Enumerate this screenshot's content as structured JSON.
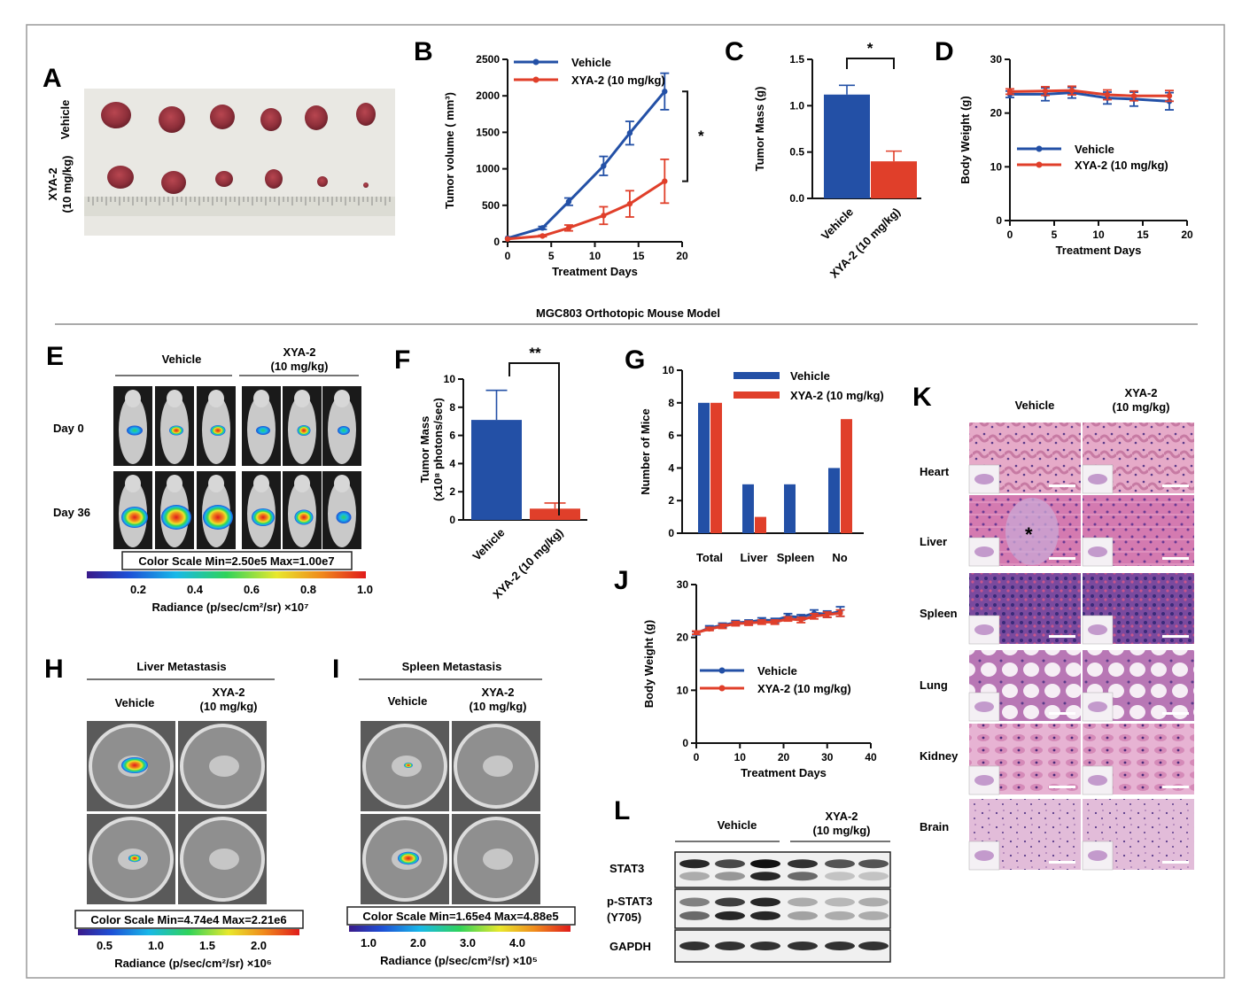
{
  "section_title": "MGC803 Orthotopic Mouse Model",
  "panel_labels": [
    "A",
    "B",
    "C",
    "D",
    "E",
    "F",
    "G",
    "H",
    "I",
    "J",
    "K",
    "L"
  ],
  "colors": {
    "vehicle": "#2350a6",
    "xya2": "#e03f2a"
  },
  "legend": {
    "vehicle": "Vehicle",
    "xya2": "XYA-2 (10 mg/kg)"
  },
  "panelA": {
    "row_labels": [
      "Vehicle",
      "XYA-2\n(10 mg/kg)"
    ]
  },
  "panelE": {
    "group_labels": [
      "Vehicle",
      "XYA-2\n(10 mg/kg)"
    ],
    "row_labels": [
      "Day 0",
      "Day 36"
    ],
    "color_scale": "Color Scale Min=2.50e5 Max=1.00e7",
    "ticks": [
      "0.2",
      "0.4",
      "0.6",
      "0.8",
      "1.0"
    ],
    "axis_label": "Radiance (p/sec/cm²/sr) ×10⁷"
  },
  "panelH": {
    "title": "Liver Metastasis",
    "group_labels": [
      "Vehicle",
      "XYA-2\n(10 mg/kg)"
    ],
    "color_scale": "Color Scale Min=4.74e4 Max=2.21e6",
    "ticks": [
      "0.5",
      "1.0",
      "1.5",
      "2.0"
    ],
    "axis_label": "Radiance (p/sec/cm²/sr) ×10⁶"
  },
  "panelI": {
    "title": "Spleen Metastasis",
    "group_labels": [
      "Vehicle",
      "XYA-2\n(10 mg/kg)"
    ],
    "color_scale": "Color Scale Min=1.65e4 Max=4.88e5",
    "ticks": [
      "1.0",
      "2.0",
      "3.0",
      "4.0"
    ],
    "axis_label": "Radiance (p/sec/cm²/sr) ×10⁵"
  },
  "panelK": {
    "col_labels": [
      "Vehicle",
      "XYA-2\n(10 mg/kg)"
    ],
    "row_labels": [
      "Heart",
      "Liver",
      "Spleen",
      "Lung",
      "Kidney",
      "Brain"
    ],
    "marker": "*"
  },
  "panelL": {
    "group_labels": [
      "Vehicle",
      "XYA-2\n(10 mg/kg)"
    ],
    "bands": [
      "STAT3",
      "p-STAT3\n(Y705)",
      "GAPDH"
    ]
  },
  "chart_data": [
    {
      "panel": "B",
      "type": "line",
      "xlabel": "Treatment Days",
      "ylabel": "Tumor volume ( mm³)",
      "x": [
        0,
        4,
        7,
        11,
        14,
        18
      ],
      "xlim": [
        0,
        20
      ],
      "xticks": [
        0,
        5,
        10,
        15,
        20
      ],
      "ylim": [
        0,
        2500
      ],
      "yticks": [
        0,
        500,
        1000,
        1500,
        2000,
        2500
      ],
      "series": [
        {
          "name": "Vehicle",
          "values": [
            50,
            190,
            550,
            1040,
            1490,
            2060
          ],
          "errors": [
            0,
            20,
            50,
            130,
            160,
            250
          ]
        },
        {
          "name": "XYA-2 (10 mg/kg)",
          "values": [
            40,
            80,
            190,
            360,
            520,
            830
          ],
          "errors": [
            0,
            10,
            40,
            120,
            180,
            300
          ]
        }
      ],
      "significance": "*"
    },
    {
      "panel": "C",
      "type": "bar",
      "ylabel": "Tumor Mass (g)",
      "categories": [
        "Vehicle",
        "XYA-2 (10 mg/kg)"
      ],
      "values": [
        1.12,
        0.4
      ],
      "errors": [
        0.1,
        0.11
      ],
      "ylim": [
        0,
        1.5
      ],
      "yticks": [
        0.0,
        0.5,
        1.0,
        1.5
      ],
      "significance": "*"
    },
    {
      "panel": "D",
      "type": "line",
      "xlabel": "Treatment Days",
      "ylabel": "Body Weight (g)",
      "x": [
        0,
        4,
        7,
        11,
        14,
        18
      ],
      "xlim": [
        0,
        20
      ],
      "xticks": [
        0,
        5,
        10,
        15,
        20
      ],
      "ylim": [
        0,
        30
      ],
      "yticks": [
        0,
        10,
        20,
        30
      ],
      "series": [
        {
          "name": "Vehicle",
          "values": [
            23.5,
            23.5,
            23.8,
            22.8,
            22.6,
            22.2
          ],
          "errors": [
            0.6,
            1.2,
            1.0,
            1.1,
            1.3,
            1.6
          ]
        },
        {
          "name": "XYA-2 (10 mg/kg)",
          "values": [
            24.0,
            24.1,
            24.2,
            23.4,
            23.2,
            23.2
          ],
          "errors": [
            0.5,
            0.8,
            0.8,
            0.9,
            0.9,
            1.0
          ]
        }
      ]
    },
    {
      "panel": "F",
      "type": "bar",
      "ylabel": "Tumor Mass\n(x10⁸ photons/sec)",
      "categories": [
        "Vehicle",
        "XYA-2 (10 mg/kg)"
      ],
      "values": [
        7.1,
        0.8
      ],
      "errors": [
        2.1,
        0.4
      ],
      "ylim": [
        0,
        10
      ],
      "yticks": [
        0,
        2,
        4,
        6,
        8,
        10
      ],
      "significance": "**"
    },
    {
      "panel": "G",
      "type": "bar",
      "ylabel": "Number of Mice",
      "categories": [
        "Total",
        "Liver",
        "Spleen",
        "No"
      ],
      "series": [
        {
          "name": "Vehicle",
          "values": [
            8,
            3,
            3,
            4
          ]
        },
        {
          "name": "XYA-2 (10 mg/kg)",
          "values": [
            8,
            1,
            0,
            7
          ]
        }
      ],
      "ylim": [
        0,
        10
      ],
      "yticks": [
        0,
        2,
        4,
        6,
        8,
        10
      ]
    },
    {
      "panel": "J",
      "type": "line",
      "xlabel": "Treatment Days",
      "ylabel": "Body Weight (g)",
      "x": [
        0,
        3,
        6,
        9,
        12,
        15,
        18,
        21,
        24,
        27,
        30,
        33
      ],
      "xlim": [
        0,
        40
      ],
      "xticks": [
        0,
        10,
        20,
        30,
        40
      ],
      "ylim": [
        0,
        30
      ],
      "yticks": [
        0,
        10,
        20,
        30
      ],
      "series": [
        {
          "name": "Vehicle",
          "values": [
            20.8,
            21.8,
            22.3,
            22.8,
            22.9,
            23.3,
            23.2,
            24.0,
            23.8,
            24.6,
            24.4,
            24.9
          ],
          "errors": [
            0.3,
            0.4,
            0.4,
            0.4,
            0.4,
            0.4,
            0.4,
            0.5,
            0.5,
            0.6,
            0.6,
            0.9
          ]
        },
        {
          "name": "XYA-2 (10 mg/kg)",
          "values": [
            20.9,
            21.6,
            22.1,
            22.6,
            22.7,
            22.9,
            22.9,
            23.5,
            23.3,
            24.0,
            24.3,
            24.6
          ],
          "errors": [
            0.3,
            0.3,
            0.4,
            0.4,
            0.4,
            0.4,
            0.4,
            0.4,
            0.5,
            0.5,
            0.5,
            0.6
          ]
        }
      ]
    }
  ]
}
